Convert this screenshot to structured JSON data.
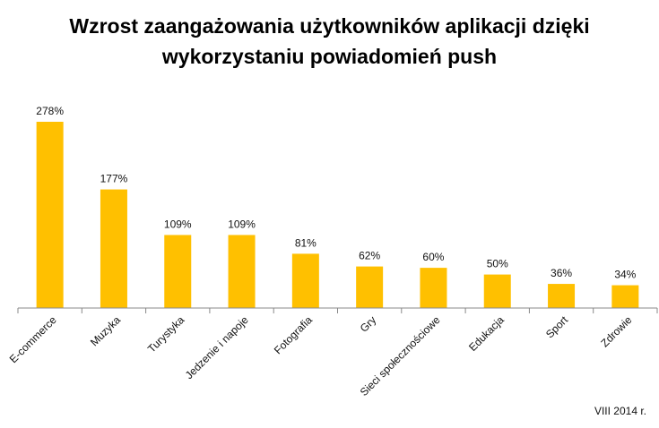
{
  "chart_data": {
    "type": "bar",
    "title_lines": [
      "Wzrost zaangażowania użytkowników aplikacji dzięki",
      "wykorzystaniu powiadomień push"
    ],
    "categories": [
      "E-commerce",
      "Muzyka",
      "Turystyka",
      "Jedzenie i napoje",
      "Fotografia",
      "Gry",
      "Sieci społecznościowe",
      "Edukacja",
      "Sport",
      "Zdrowie"
    ],
    "values": [
      278,
      177,
      109,
      109,
      81,
      62,
      60,
      50,
      36,
      34
    ],
    "data_labels": [
      "278%",
      "177%",
      "109%",
      "109%",
      "81%",
      "62%",
      "60%",
      "50%",
      "36%",
      "34%"
    ],
    "ylim": [
      0,
      278
    ],
    "grid": false,
    "legend": "none",
    "bar_color": "#FFC000"
  },
  "footnote": "VIII 2014 r."
}
